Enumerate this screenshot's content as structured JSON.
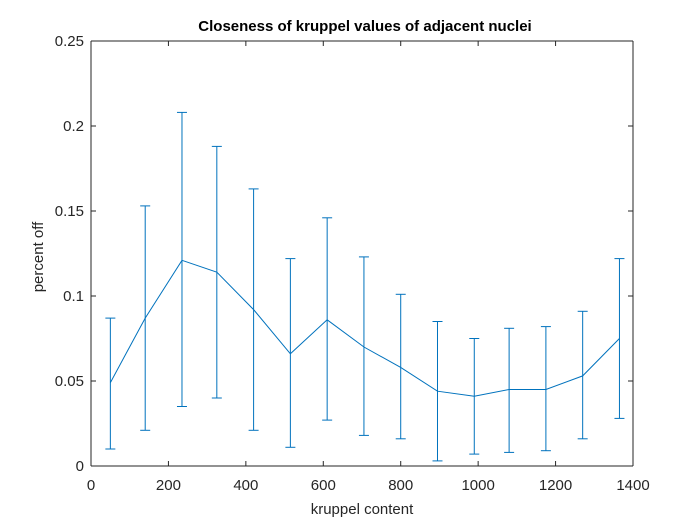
{
  "chart_data": {
    "type": "line",
    "title": "Closeness of kruppel values of adjacent nuclei",
    "xlabel": "kruppel content",
    "ylabel": "percent off",
    "xlim": [
      0,
      1400
    ],
    "ylim": [
      0,
      0.25
    ],
    "xticks": [
      0,
      200,
      400,
      600,
      800,
      1000,
      1200,
      1400
    ],
    "xtick_labels": [
      "0",
      "200",
      "400",
      "600",
      "800",
      "1000",
      "1200",
      "1400"
    ],
    "yticks": [
      0,
      0.05,
      0.1,
      0.15,
      0.2,
      0.25
    ],
    "ytick_labels": [
      "0",
      "0.05",
      "0.1",
      "0.15",
      "0.2",
      "0.25"
    ],
    "grid": false,
    "series": [
      {
        "color": "#0072BD",
        "points": [
          {
            "x": 50,
            "y": 0.049,
            "lower": 0.01,
            "upper": 0.087
          },
          {
            "x": 140,
            "y": 0.087,
            "lower": 0.021,
            "upper": 0.153
          },
          {
            "x": 235,
            "y": 0.121,
            "lower": 0.035,
            "upper": 0.208
          },
          {
            "x": 325,
            "y": 0.114,
            "lower": 0.04,
            "upper": 0.188
          },
          {
            "x": 420,
            "y": 0.092,
            "lower": 0.021,
            "upper": 0.163
          },
          {
            "x": 515,
            "y": 0.066,
            "lower": 0.011,
            "upper": 0.122
          },
          {
            "x": 610,
            "y": 0.086,
            "lower": 0.027,
            "upper": 0.146
          },
          {
            "x": 705,
            "y": 0.07,
            "lower": 0.018,
            "upper": 0.123
          },
          {
            "x": 800,
            "y": 0.058,
            "lower": 0.016,
            "upper": 0.101
          },
          {
            "x": 895,
            "y": 0.044,
            "lower": 0.003,
            "upper": 0.085
          },
          {
            "x": 990,
            "y": 0.041,
            "lower": 0.007,
            "upper": 0.075
          },
          {
            "x": 1080,
            "y": 0.045,
            "lower": 0.008,
            "upper": 0.081
          },
          {
            "x": 1175,
            "y": 0.045,
            "lower": 0.009,
            "upper": 0.082
          },
          {
            "x": 1270,
            "y": 0.053,
            "lower": 0.016,
            "upper": 0.091
          },
          {
            "x": 1365,
            "y": 0.075,
            "lower": 0.028,
            "upper": 0.122
          }
        ]
      }
    ]
  }
}
